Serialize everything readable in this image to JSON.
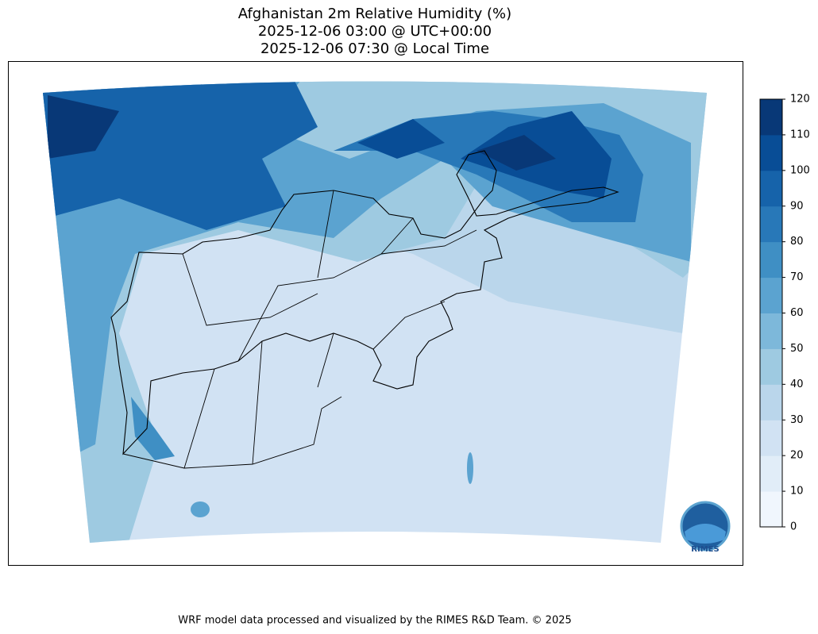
{
  "title_lines": [
    "Afghanistan 2m Relative Humidity (%)",
    "2025-12-06 03:00 @ UTC+00:00",
    "2025-12-06 07:30 @ Local Time"
  ],
  "colorbar": {
    "ticks": [
      0,
      10,
      20,
      30,
      40,
      50,
      60,
      70,
      80,
      90,
      100,
      110,
      120
    ],
    "colors": [
      "#f0f6fd",
      "#e1edf8",
      "#d1e2f3",
      "#bad6eb",
      "#9ecae1",
      "#7db8da",
      "#5ba3d0",
      "#3f8fc4",
      "#2878b8",
      "#1663aa",
      "#084d96",
      "#083877"
    ]
  },
  "logo": "RIMES",
  "footer": "WRF model data processed and visualized by the RIMES R&D Team. © 2025"
}
